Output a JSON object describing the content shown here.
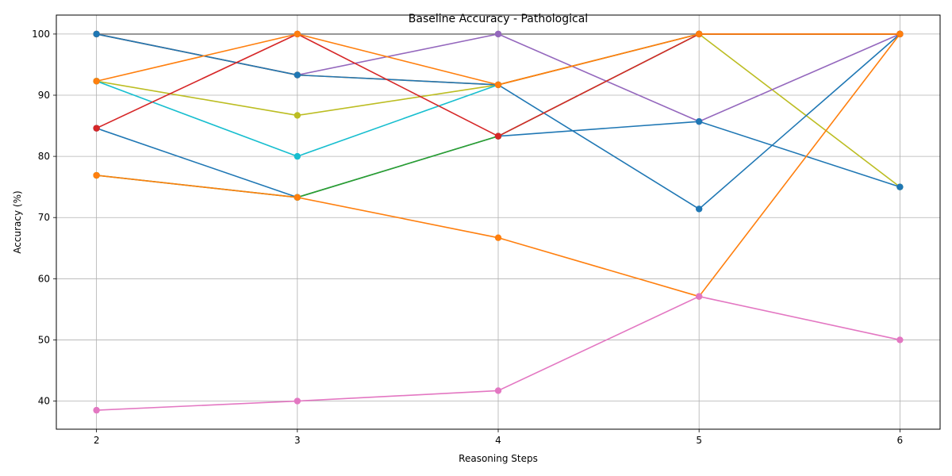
{
  "chart_data": {
    "type": "line",
    "title": "Baseline Accuracy - Pathological",
    "xlabel": "Reasoning Steps",
    "ylabel": "Accuracy (%)",
    "x": [
      2,
      3,
      4,
      5,
      6
    ],
    "xticks": [
      "2",
      "3",
      "4",
      "5",
      "6"
    ],
    "yticks": [
      "40",
      "50",
      "60",
      "70",
      "80",
      "90",
      "100"
    ],
    "xlim": [
      1.8,
      6.2
    ],
    "ylim": [
      35.4,
      103.1
    ],
    "grid": true,
    "marker": "circle",
    "series": [
      {
        "color": "#7f7f7f",
        "values": [
          100,
          100,
          100,
          100,
          100
        ]
      },
      {
        "color": "#bcbd22",
        "values": [
          92.3,
          86.7,
          91.7,
          100,
          75
        ]
      },
      {
        "color": "#17becf",
        "values": [
          92.3,
          80.0,
          91.7,
          100,
          100
        ]
      },
      {
        "color": "#9467bd",
        "values": [
          100,
          93.3,
          100,
          85.7,
          100
        ]
      },
      {
        "color": "#ff7f0e",
        "values": [
          100,
          93.3,
          91.7,
          100,
          100
        ]
      },
      {
        "color": "#1f77b4",
        "values": [
          100,
          93.3,
          91.7,
          71.4,
          100
        ]
      },
      {
        "color": "#1f77b4",
        "values": [
          84.6,
          73.3,
          83.3,
          85.7,
          75
        ]
      },
      {
        "color": "#2ca02c",
        "values": [
          76.9,
          73.3,
          83.3,
          100,
          100
        ]
      },
      {
        "color": "#ff7f0e",
        "values": [
          76.9,
          73.3,
          66.7,
          57.1,
          100
        ]
      },
      {
        "color": "#d62728",
        "values": [
          84.6,
          100,
          83.3,
          100,
          100
        ]
      },
      {
        "color": "#ff7f0e",
        "values": [
          92.3,
          100,
          91.7,
          100,
          100
        ]
      },
      {
        "color": "#e377c2",
        "values": [
          38.5,
          40.0,
          41.7,
          57.1,
          50
        ]
      }
    ]
  }
}
